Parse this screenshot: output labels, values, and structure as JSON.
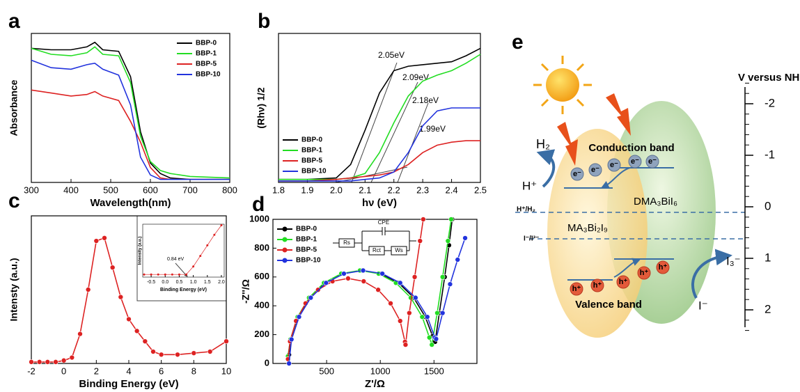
{
  "chart_data": [
    {
      "type": "line",
      "panel": "a",
      "xlabel": "Wavelength(nm)",
      "ylabel": "Absorbance",
      "xlim": [
        300,
        800
      ],
      "xticks": [
        300,
        400,
        500,
        600,
        700,
        800
      ],
      "ylim": [
        0,
        1
      ],
      "legend": "upper right",
      "markers": false,
      "x": [
        300,
        350,
        400,
        440,
        460,
        480,
        520,
        550,
        575,
        600,
        625,
        650,
        700,
        800
      ],
      "series": [
        {
          "name": "BBP-0",
          "color": "#000000",
          "values": [
            0.9,
            0.89,
            0.89,
            0.91,
            0.94,
            0.89,
            0.88,
            0.71,
            0.34,
            0.13,
            0.06,
            0.03,
            0.02,
            0.02
          ]
        },
        {
          "name": "BBP-1",
          "color": "#22dd22",
          "values": [
            0.9,
            0.86,
            0.85,
            0.87,
            0.91,
            0.86,
            0.85,
            0.67,
            0.31,
            0.14,
            0.08,
            0.06,
            0.04,
            0.03
          ]
        },
        {
          "name": "BBP-5",
          "color": "#dd2222",
          "values": [
            0.62,
            0.6,
            0.58,
            0.59,
            0.61,
            0.58,
            0.55,
            0.41,
            0.27,
            0.1,
            0.03,
            0.02,
            0.02,
            0.02
          ]
        },
        {
          "name": "BBP-10",
          "color": "#2233dd",
          "values": [
            0.82,
            0.77,
            0.76,
            0.79,
            0.8,
            0.76,
            0.72,
            0.52,
            0.17,
            0.05,
            0.02,
            0.02,
            0.02,
            0.02
          ]
        }
      ]
    },
    {
      "type": "line",
      "panel": "b",
      "xlabel": "hν (eV)",
      "ylabel": "(Rhν) 1/2",
      "xlim": [
        1.8,
        2.5
      ],
      "xticks": [
        1.8,
        1.9,
        {
          "value": 2,
          "label": "2.0"
        },
        2.1,
        2.2,
        2.3,
        2.4,
        2.5
      ],
      "ylim": [
        0,
        1
      ],
      "legend": "lower left",
      "markers": false,
      "annotations": [
        "2.05eV",
        "2.09eV",
        "2.18eV",
        "1.99eV"
      ],
      "x": [
        1.8,
        1.9,
        2.0,
        2.05,
        2.1,
        2.15,
        2.2,
        2.25,
        2.3,
        2.35,
        2.4,
        2.45,
        2.5
      ],
      "series": [
        {
          "name": "BBP-0",
          "color": "#000000",
          "values": [
            0.02,
            0.02,
            0.03,
            0.12,
            0.35,
            0.6,
            0.75,
            0.78,
            0.79,
            0.8,
            0.81,
            0.85,
            0.9
          ]
        },
        {
          "name": "BBP-1",
          "color": "#22dd22",
          "values": [
            0.02,
            0.02,
            0.02,
            0.03,
            0.06,
            0.2,
            0.4,
            0.58,
            0.68,
            0.72,
            0.75,
            0.8,
            0.86
          ]
        },
        {
          "name": "BBP-5",
          "color": "#dd2222",
          "values": [
            0.01,
            0.01,
            0.02,
            0.03,
            0.04,
            0.05,
            0.07,
            0.12,
            0.2,
            0.25,
            0.27,
            0.28,
            0.28
          ]
        },
        {
          "name": "BBP-10",
          "color": "#2233dd",
          "values": [
            0.01,
            0.01,
            0.01,
            0.01,
            0.02,
            0.03,
            0.07,
            0.2,
            0.38,
            0.48,
            0.5,
            0.5,
            0.5
          ]
        }
      ]
    },
    {
      "type": "line",
      "panel": "c",
      "xlabel": "Binding Energy (eV)",
      "ylabel": "Intensty (a.u.)",
      "xlim": [
        -2,
        10
      ],
      "xticks": [
        -2,
        0,
        2,
        4,
        6,
        8,
        10
      ],
      "ylim": [
        0,
        1
      ],
      "markers": true,
      "x": [
        -2,
        -1.5,
        -1,
        -0.5,
        0,
        0.5,
        1,
        1.5,
        2,
        2.5,
        3,
        3.5,
        4,
        4.5,
        5,
        5.5,
        6,
        7,
        8,
        9,
        10
      ],
      "series": [
        {
          "color": "#dd2222",
          "values": [
            0.01,
            0.01,
            0.01,
            0.01,
            0.02,
            0.04,
            0.2,
            0.5,
            0.83,
            0.85,
            0.65,
            0.45,
            0.3,
            0.22,
            0.15,
            0.08,
            0.06,
            0.06,
            0.07,
            0.08,
            0.15
          ]
        }
      ]
    },
    {
      "type": "line",
      "xlabel": "Binding Energy (eV)",
      "ylabel": "Intensity (a.u.)",
      "xlim": [
        -0.8,
        2.1
      ],
      "xticks": [
        -0.5,
        {
          "value": 0,
          "label": "0.0"
        },
        0.5,
        {
          "value": 1,
          "label": "1.0"
        },
        1.5,
        {
          "value": 2,
          "label": "2.0"
        }
      ],
      "ylim": [
        0,
        1
      ],
      "markers": true,
      "annotations": [
        "0.84 eV"
      ],
      "x": [
        -0.75,
        -0.5,
        -0.25,
        0,
        0.25,
        0.5,
        0.75,
        1.0,
        1.25,
        1.5,
        1.75,
        2.0
      ],
      "series": [
        {
          "color": "#dd2222",
          "values": [
            0.05,
            0.05,
            0.05,
            0.05,
            0.05,
            0.05,
            0.05,
            0.2,
            0.4,
            0.6,
            0.8,
            0.98
          ]
        }
      ]
    },
    {
      "type": "line",
      "panel": "d",
      "xlabel": "Z'/Ω",
      "ylabel": "-Z''/Ω",
      "xlim": [
        0,
        1900
      ],
      "xticks": [
        500,
        1000,
        1500
      ],
      "ylim": [
        0,
        1000
      ],
      "yticks": [
        0,
        200,
        400,
        600,
        800,
        1000
      ],
      "legend": "upper left",
      "markers": true,
      "circuit": [
        "Rs",
        "CPE",
        "Rct",
        "Ws"
      ],
      "series": [
        {
          "name": "BBP-0",
          "color": "#000000",
          "x": [
            150,
            173,
            241,
            349,
            490,
            654,
            830,
            1006,
            1170,
            1311,
            1419,
            1487,
            1510,
            1550,
            1600,
            1640,
            1670
          ],
          "values": [
            60,
            167,
            323,
            456,
            559,
            623,
            645,
            623,
            559,
            456,
            323,
            190,
            150,
            350,
            600,
            820,
            1000
          ]
        },
        {
          "name": "BBP-1",
          "color": "#22dd22",
          "x": [
            140,
            163,
            230,
            336,
            475,
            636,
            810,
            984,
            1145,
            1284,
            1390,
            1457,
            1480,
            1530,
            1580,
            1630,
            1660
          ],
          "values": [
            50,
            167,
            323,
            456,
            559,
            623,
            645,
            623,
            559,
            456,
            323,
            180,
            130,
            350,
            600,
            850,
            1000
          ]
        },
        {
          "name": "BBP-5",
          "color": "#dd2222",
          "x": [
            140,
            159,
            215,
            304,
            420,
            555,
            700,
            845,
            980,
            1096,
            1185,
            1230,
            1235,
            1270,
            1320,
            1370,
            1400
          ],
          "values": [
            30,
            153,
            295,
            417,
            511,
            570,
            590,
            570,
            511,
            417,
            295,
            150,
            130,
            350,
            600,
            850,
            1000
          ]
        },
        {
          "name": "BBP-10",
          "color": "#2233dd",
          "x": [
            150,
            173,
            243,
            352,
            495,
            661,
            840,
            1019,
            1185,
            1328,
            1438,
            1507,
            1520,
            1580,
            1650,
            1720,
            1790
          ],
          "values": [
            0,
            167,
            323,
            456,
            559,
            623,
            645,
            623,
            559,
            456,
            323,
            180,
            170,
            350,
            550,
            720,
            870
          ]
        }
      ]
    }
  ],
  "diagram": {
    "panel": "e",
    "scale": {
      "title": "V versus NHE",
      "ticks": [
        -2,
        -1,
        0,
        1,
        2
      ]
    },
    "labels": {
      "h2": "H₂",
      "h_plus": "H⁺",
      "conduction_band": "Conduction band",
      "dma": "DMA₃BiI₆",
      "ma": "MA₃Bi₂I₉",
      "h_h2": "H⁺/H₂",
      "i_i3": "I⁻/I³⁻",
      "i3": "I₃⁻",
      "i_minus": "I⁻",
      "valence_band": "Valence  band",
      "electrons": [
        "e⁻",
        "e⁻",
        "e⁻",
        "e⁻",
        "e⁻"
      ],
      "holes": [
        "h⁺",
        "h⁺",
        "h⁺",
        "h⁺",
        "h⁺"
      ]
    }
  }
}
